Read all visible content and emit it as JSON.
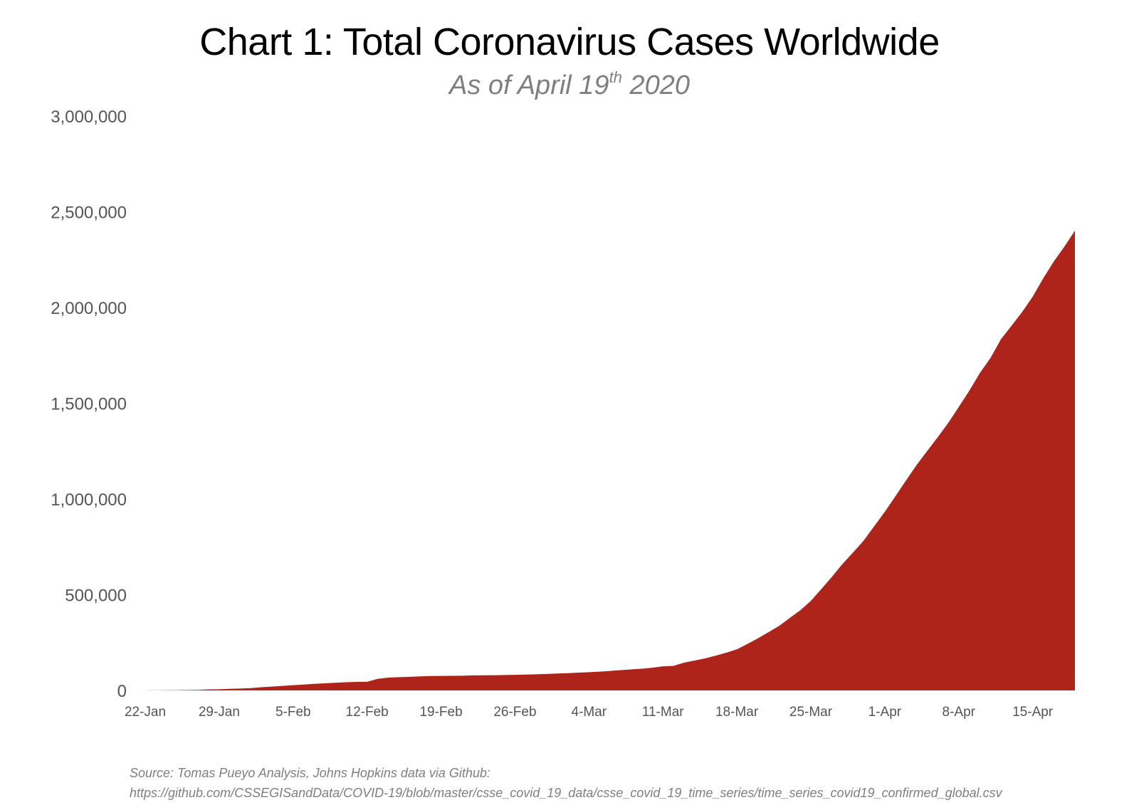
{
  "title": "Chart 1: Total Coronavirus Cases Worldwide",
  "subtitle_prefix": "As of April 19",
  "subtitle_sup": "th",
  "subtitle_suffix": " 2020",
  "source_line1": "Source: Tomas Pueyo Analysis, Johns Hopkins data via Github:",
  "source_line2": "https://github.com/CSSEGISandData/COVID-19/blob/master/csse_covid_19_data/csse_covid_19_time_series/time_series_covid19_confirmed_global.csv",
  "chart_data": {
    "type": "area",
    "title": "Chart 1: Total Coronavirus Cases Worldwide",
    "subtitle": "As of April 19th 2020",
    "xlabel": "",
    "ylabel": "",
    "ylim": [
      0,
      3000000
    ],
    "yticks": [
      0,
      500000,
      1000000,
      1500000,
      2000000,
      2500000,
      3000000
    ],
    "ytick_labels": [
      "0",
      "500,000",
      "1,000,000",
      "1,500,000",
      "2,000,000",
      "2,500,000",
      "3,000,000"
    ],
    "xtick_labels": [
      "22-Jan",
      "29-Jan",
      "5-Feb",
      "12-Feb",
      "19-Feb",
      "26-Feb",
      "4-Mar",
      "11-Mar",
      "18-Mar",
      "25-Mar",
      "1-Apr",
      "8-Apr",
      "15-Apr"
    ],
    "grid": false,
    "color": "#AE231A",
    "x": [
      "22-Jan",
      "23-Jan",
      "24-Jan",
      "25-Jan",
      "26-Jan",
      "27-Jan",
      "28-Jan",
      "29-Jan",
      "30-Jan",
      "31-Jan",
      "1-Feb",
      "2-Feb",
      "3-Feb",
      "4-Feb",
      "5-Feb",
      "6-Feb",
      "7-Feb",
      "8-Feb",
      "9-Feb",
      "10-Feb",
      "11-Feb",
      "12-Feb",
      "13-Feb",
      "14-Feb",
      "15-Feb",
      "16-Feb",
      "17-Feb",
      "18-Feb",
      "19-Feb",
      "20-Feb",
      "21-Feb",
      "22-Feb",
      "23-Feb",
      "24-Feb",
      "25-Feb",
      "26-Feb",
      "27-Feb",
      "28-Feb",
      "29-Feb",
      "1-Mar",
      "2-Mar",
      "3-Mar",
      "4-Mar",
      "5-Mar",
      "6-Mar",
      "7-Mar",
      "8-Mar",
      "9-Mar",
      "10-Mar",
      "11-Mar",
      "12-Mar",
      "13-Mar",
      "14-Mar",
      "15-Mar",
      "16-Mar",
      "17-Mar",
      "18-Mar",
      "19-Mar",
      "20-Mar",
      "21-Mar",
      "22-Mar",
      "23-Mar",
      "24-Mar",
      "25-Mar",
      "26-Mar",
      "27-Mar",
      "28-Mar",
      "29-Mar",
      "30-Mar",
      "31-Mar",
      "1-Apr",
      "2-Apr",
      "3-Apr",
      "4-Apr",
      "5-Apr",
      "6-Apr",
      "7-Apr",
      "8-Apr",
      "9-Apr",
      "10-Apr",
      "11-Apr",
      "12-Apr",
      "13-Apr",
      "14-Apr",
      "15-Apr",
      "16-Apr",
      "17-Apr",
      "18-Apr",
      "19-Apr"
    ],
    "values": [
      555,
      654,
      941,
      1434,
      2118,
      2927,
      5578,
      6166,
      8234,
      9927,
      12038,
      16787,
      19881,
      23892,
      27635,
      30794,
      34391,
      37120,
      40150,
      42762,
      44802,
      45221,
      60368,
      66885,
      69030,
      71224,
      73258,
      75136,
      75639,
      76197,
      76819,
      78572,
      78958,
      79561,
      80406,
      81388,
      82746,
      84112,
      86011,
      88369,
      90306,
      92840,
      95120,
      97886,
      101801,
      105847,
      109821,
      113590,
      118620,
      125875,
      128352,
      145205,
      156101,
      167454,
      181574,
      197102,
      214821,
      242570,
      272208,
      304507,
      336953,
      378235,
      418045,
      467653,
      529591,
      593291,
      660706,
      720117,
      782365,
      857487,
      932605,
      1013466,
      1095917,
      1176060,
      1249754,
      1321481,
      1396476,
      1479804,
      1565278,
      1657526,
      1735650,
      1834721,
      1904838,
      1976191,
      2056054,
      2152437,
      2240190,
      2317759,
      2401378
    ]
  }
}
